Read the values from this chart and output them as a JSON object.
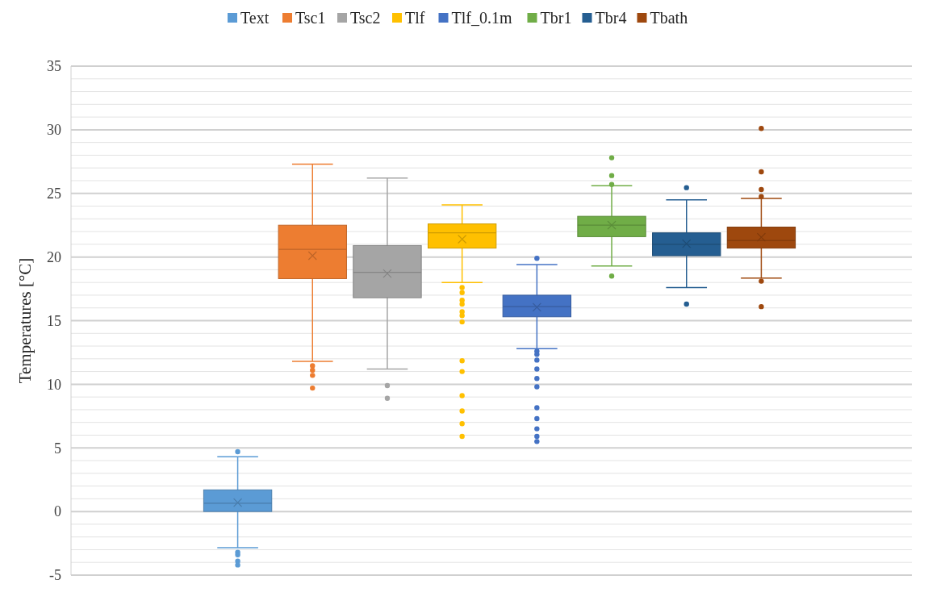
{
  "chart_data": {
    "type": "box",
    "ylabel": "Temperatures [°C]",
    "categories": [
      null
    ],
    "ylim": [
      -5,
      35
    ],
    "yticks": [
      -5,
      {
        "value": -4,
        "label": null
      },
      {
        "value": -3,
        "label": null
      },
      {
        "value": -2,
        "label": null
      },
      {
        "value": -1,
        "label": null
      },
      0,
      {
        "value": 1,
        "label": null
      },
      {
        "value": 2,
        "label": null
      },
      {
        "value": 3,
        "label": null
      },
      {
        "value": 4,
        "label": null
      },
      5,
      {
        "value": 6,
        "label": null
      },
      {
        "value": 7,
        "label": null
      },
      {
        "value": 8,
        "label": null
      },
      {
        "value": 9,
        "label": null
      },
      10,
      {
        "value": 11,
        "label": null
      },
      {
        "value": 12,
        "label": null
      },
      {
        "value": 13,
        "label": null
      },
      {
        "value": 14,
        "label": null
      },
      15,
      {
        "value": 16,
        "label": null
      },
      {
        "value": 17,
        "label": null
      },
      {
        "value": 18,
        "label": null
      },
      {
        "value": 19,
        "label": null
      },
      20,
      {
        "value": 21,
        "label": null
      },
      {
        "value": 22,
        "label": null
      },
      {
        "value": 23,
        "label": null
      },
      {
        "value": 24,
        "label": null
      },
      25,
      {
        "value": 26,
        "label": null
      },
      {
        "value": 27,
        "label": null
      },
      {
        "value": 28,
        "label": null
      },
      {
        "value": 29,
        "label": null
      },
      30,
      {
        "value": 31,
        "label": null
      },
      {
        "value": 32,
        "label": null
      },
      {
        "value": 33,
        "label": null
      },
      {
        "value": 34,
        "label": null
      },
      35
    ],
    "grid": "y",
    "legend": "top",
    "tick_labels": "y",
    "series": [
      {
        "name": "Text",
        "color": "#5b9bd5",
        "boxes": [
          {
            "low": -2.85,
            "q1": 0,
            "median": 0.65,
            "q3": 1.7,
            "high": 4.3,
            "mean": 0.7,
            "outliers": [
              4.7,
              -3.2,
              -3.4,
              -3.9,
              -4.2
            ]
          }
        ]
      },
      {
        "name": "Tsc1",
        "color": "#ed7d31",
        "boxes": [
          {
            "low": 11.8,
            "q1": 18.3,
            "median": 20.6,
            "q3": 22.5,
            "high": 27.3,
            "mean": 20.1,
            "outliers": [
              11.45,
              11.1,
              10.7,
              9.7
            ]
          }
        ]
      },
      {
        "name": "Tsc2",
        "color": "#a5a5a5",
        "boxes": [
          {
            "low": 11.2,
            "q1": 16.8,
            "median": 18.8,
            "q3": 20.9,
            "high": 26.2,
            "mean": 18.7,
            "outliers": [
              9.9,
              8.9
            ]
          }
        ]
      },
      {
        "name": "Tlf",
        "color": "#ffc000",
        "boxes": [
          {
            "low": 18,
            "q1": 20.7,
            "median": 21.9,
            "q3": 22.6,
            "high": 24.1,
            "mean": 21.4,
            "outliers": [
              17.6,
              17.2,
              16.6,
              16.3,
              15.7,
              15.4,
              14.9,
              11.85,
              11,
              9.1,
              7.9,
              6.9,
              5.9
            ]
          }
        ]
      },
      {
        "name": "Tlf_0.1m",
        "color": "#4472c4",
        "boxes": [
          {
            "low": 12.8,
            "q1": 15.3,
            "median": 16.1,
            "q3": 17,
            "high": 19.4,
            "mean": 16.05,
            "outliers": [
              19.9,
              12.6,
              12.35,
              11.9,
              11.2,
              10.45,
              9.8,
              8.15,
              7.3,
              6.5,
              5.9,
              5.5
            ]
          }
        ]
      },
      {
        "name": "Tbr1",
        "color": "#70ad47",
        "boxes": [
          {
            "low": 19.3,
            "q1": 21.6,
            "median": 22.5,
            "q3": 23.2,
            "high": 25.6,
            "mean": 22.5,
            "outliers": [
              27.8,
              26.4,
              25.7,
              18.5
            ]
          }
        ]
      },
      {
        "name": "Tbr4",
        "color": "#255e91",
        "boxes": [
          {
            "low": 17.6,
            "q1": 20.1,
            "median": 21,
            "q3": 21.9,
            "high": 24.5,
            "mean": 21.05,
            "outliers": [
              25.45,
              16.3
            ]
          }
        ]
      },
      {
        "name": "Tbath",
        "color": "#9e480e",
        "boxes": [
          {
            "low": 18.35,
            "q1": 20.7,
            "median": 21.3,
            "q3": 22.35,
            "high": 24.6,
            "mean": 21.55,
            "outliers": [
              30.1,
              26.7,
              25.3,
              24.75,
              18.1,
              16.1
            ]
          }
        ]
      }
    ]
  }
}
